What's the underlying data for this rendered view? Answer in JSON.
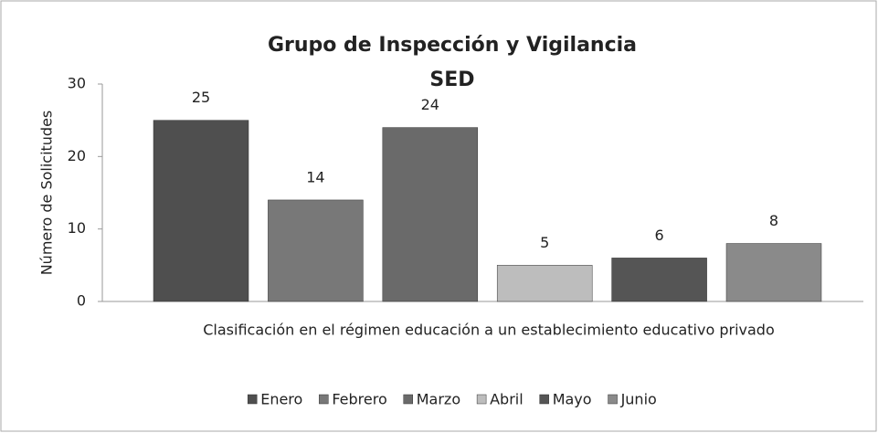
{
  "chart_data": {
    "type": "bar",
    "title": [
      "Grupo de Inspección y Vigilancia",
      "SED"
    ],
    "y_label": "Número de Solicitudes",
    "categories": [
      "Clasificación en el régimen educación a un establecimiento educativo privado"
    ],
    "series": [
      {
        "name": "Enero",
        "color": "#4f4f4f",
        "values": [
          25
        ]
      },
      {
        "name": "Febrero",
        "color": "#787878",
        "values": [
          14
        ]
      },
      {
        "name": "Marzo",
        "color": "#6a6a6a",
        "values": [
          24
        ]
      },
      {
        "name": "Abril",
        "color": "#bdbdbd",
        "values": [
          5
        ]
      },
      {
        "name": "Mayo",
        "color": "#555555",
        "values": [
          6
        ]
      },
      {
        "name": "Junio",
        "color": "#8a8a8a",
        "values": [
          8
        ]
      }
    ],
    "ylim": [
      0,
      30
    ],
    "yticks": [
      0,
      10,
      20,
      30
    ],
    "grid": false,
    "legend": "bottom"
  }
}
